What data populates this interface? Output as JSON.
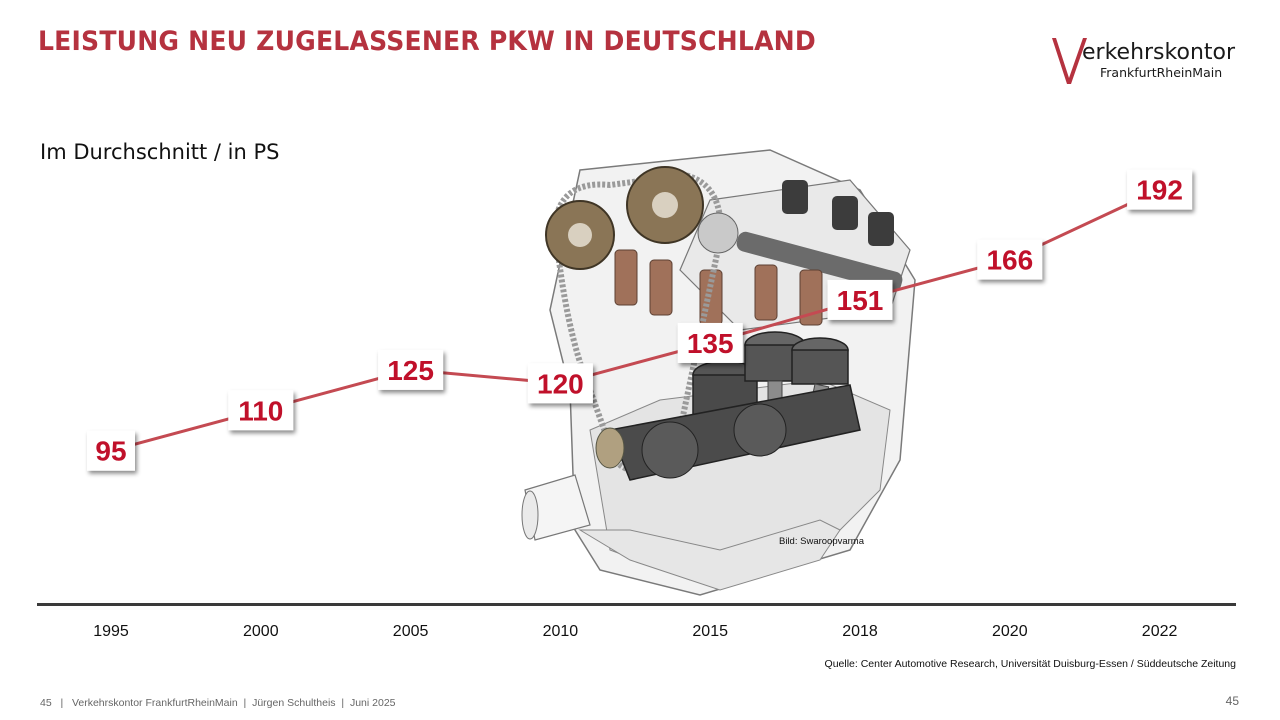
{
  "header": {
    "title": "LEISTUNG NEU ZUGELASSENER PKW IN DEUTSCHLAND",
    "logo_text": "erkehrskontor",
    "logo_subtext": "FrankfurtRheinMain"
  },
  "subtitle": "Im Durchschnitt / in PS",
  "image_credit": "Bild: Swaroopvarma",
  "source": "Quelle: Center Automotive Research, Universität Duisburg-Essen / Süddeutsche Zeitung",
  "footer": {
    "page_left": "45",
    "org": "Verkehrskontor FrankfurtRheinMain",
    "author": "Jürgen Schultheis",
    "date": "Juni 2025",
    "page_right": "45"
  },
  "colors": {
    "accent": "#b5323f",
    "label_text": "#c0102a",
    "line": "#c44a52"
  },
  "chart_data": {
    "type": "line",
    "categories": [
      "1995",
      "2000",
      "2005",
      "2010",
      "2015",
      "2018",
      "2020",
      "2022"
    ],
    "values": [
      95,
      110,
      125,
      120,
      135,
      151,
      166,
      192
    ],
    "title": "LEISTUNG NEU ZUGELASSENER PKW IN DEUTSCHLAND",
    "ylabel": "Im Durchschnitt / in PS",
    "ylim": [
      80,
      200
    ],
    "grid": false,
    "data_labels": true
  }
}
